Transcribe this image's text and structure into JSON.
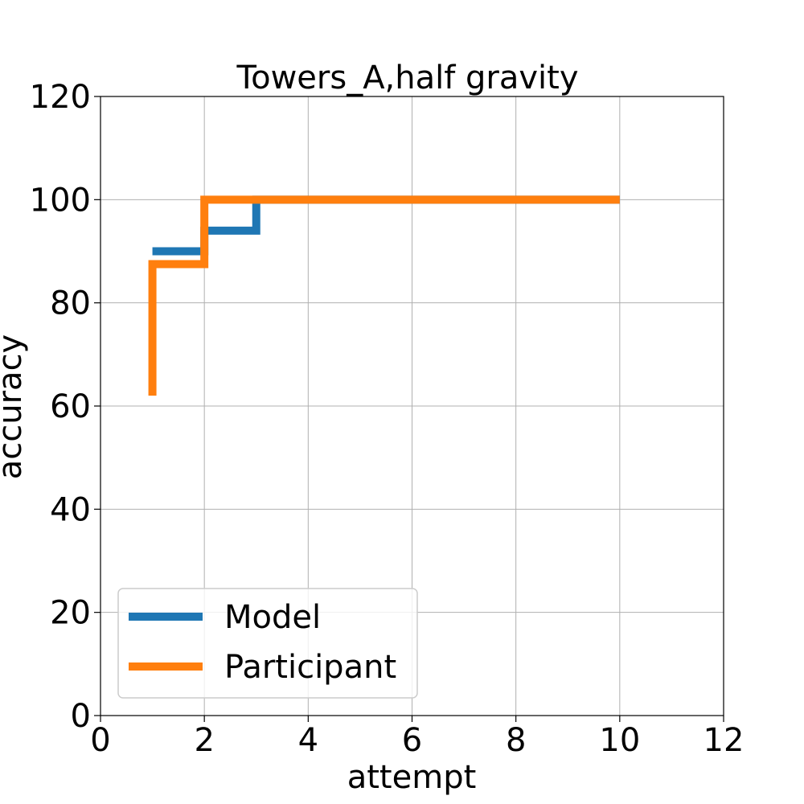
{
  "chart_data": {
    "type": "line",
    "title": "Towers_A,half gravity",
    "xlabel": "attempt",
    "ylabel": "accuracy",
    "xlim": [
      0,
      12
    ],
    "ylim": [
      0,
      120
    ],
    "xticks": [
      "0",
      "2",
      "4",
      "6",
      "8",
      "10",
      "12"
    ],
    "yticks": [
      "0",
      "20",
      "40",
      "60",
      "80",
      "100",
      "120"
    ],
    "grid": true,
    "legend_position": "lower-left",
    "series": [
      {
        "name": "Model",
        "color": "#1f77b4",
        "step": "post",
        "x": [
          1,
          2,
          3,
          10
        ],
        "y": [
          90,
          94,
          100,
          100
        ]
      },
      {
        "name": "Participant",
        "color": "#ff7f0e",
        "step": "post",
        "x": [
          1,
          1,
          2,
          10
        ],
        "y": [
          62,
          87.5,
          100,
          100
        ]
      }
    ]
  }
}
